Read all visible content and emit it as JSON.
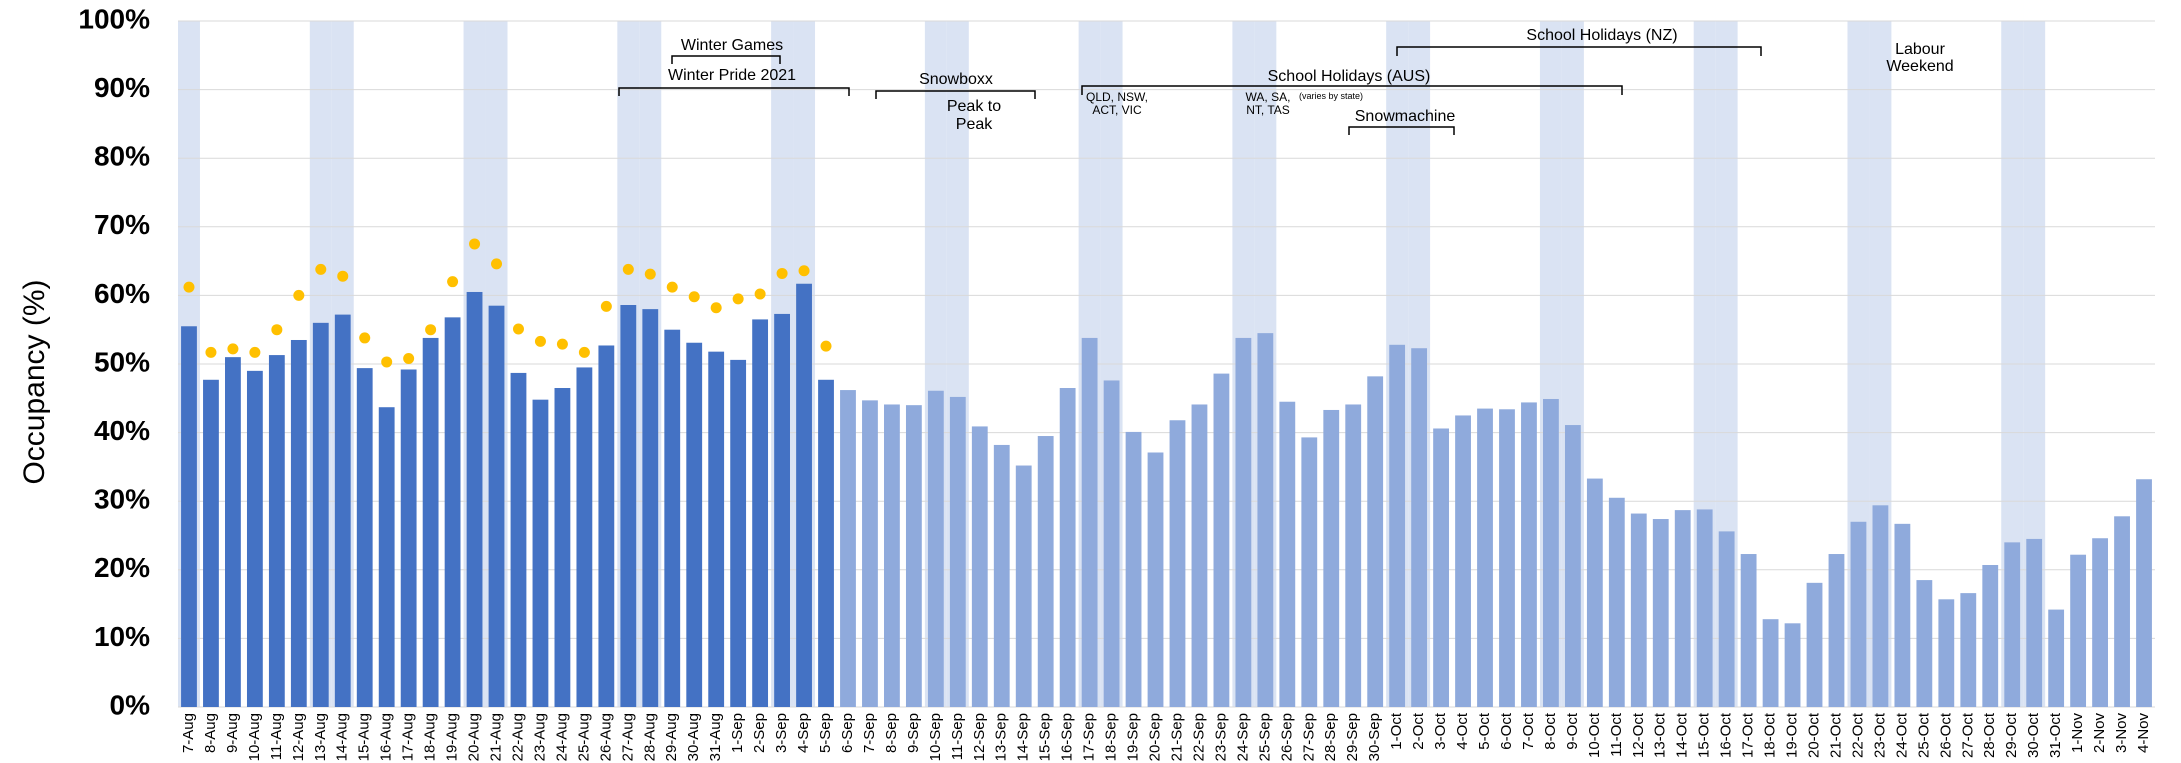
{
  "chart_data": {
    "type": "bar",
    "y_label": "Occupancy (%)",
    "ylim": [
      0,
      100
    ],
    "yticks": [
      {
        "value": 0,
        "label": "0%"
      },
      {
        "value": 10,
        "label": "10%"
      },
      {
        "value": 20,
        "label": "20%"
      },
      {
        "value": 30,
        "label": "30%"
      },
      {
        "value": 40,
        "label": "40%"
      },
      {
        "value": 50,
        "label": "50%"
      },
      {
        "value": 60,
        "label": "60%"
      },
      {
        "value": 70,
        "label": "70%"
      },
      {
        "value": 80,
        "label": "80%"
      },
      {
        "value": 90,
        "label": "90%"
      },
      {
        "value": 100,
        "label": "100%"
      }
    ],
    "grid": true,
    "shade_color": "#dae3f3",
    "shaded_categories": [
      0,
      6,
      7,
      13,
      14,
      20,
      21,
      27,
      28,
      34,
      35,
      41,
      42,
      48,
      49,
      55,
      56,
      62,
      63,
      69,
      70,
      76,
      77,
      83,
      84
    ],
    "categories": [
      "7-Aug",
      "8-Aug",
      "9-Aug",
      "10-Aug",
      "11-Aug",
      "12-Aug",
      "13-Aug",
      "14-Aug",
      "15-Aug",
      "16-Aug",
      "17-Aug",
      "18-Aug",
      "19-Aug",
      "20-Aug",
      "21-Aug",
      "22-Aug",
      "23-Aug",
      "24-Aug",
      "25-Aug",
      "26-Aug",
      "27-Aug",
      "28-Aug",
      "29-Aug",
      "30-Aug",
      "31-Aug",
      "1-Sep",
      "2-Sep",
      "3-Sep",
      "4-Sep",
      "5-Sep",
      "6-Sep",
      "7-Sep",
      "8-Sep",
      "9-Sep",
      "10-Sep",
      "11-Sep",
      "12-Sep",
      "13-Sep",
      "14-Sep",
      "15-Sep",
      "16-Sep",
      "17-Sep",
      "18-Sep",
      "19-Sep",
      "20-Sep",
      "21-Sep",
      "22-Sep",
      "23-Sep",
      "24-Sep",
      "25-Sep",
      "26-Sep",
      "27-Sep",
      "28-Sep",
      "29-Sep",
      "30-Sep",
      "1-Oct",
      "2-Oct",
      "3-Oct",
      "4-Oct",
      "5-Oct",
      "6-Oct",
      "7-Oct",
      "8-Oct",
      "9-Oct",
      "10-Oct",
      "11-Oct",
      "12-Oct",
      "13-Oct",
      "14-Oct",
      "15-Oct",
      "16-Oct",
      "17-Oct",
      "18-Oct",
      "19-Oct",
      "20-Oct",
      "21-Oct",
      "22-Oct",
      "23-Oct",
      "24-Oct",
      "25-Oct",
      "26-Oct",
      "27-Oct",
      "28-Oct",
      "29-Oct",
      "30-Oct",
      "31-Oct",
      "1-Nov",
      "2-Nov",
      "3-Nov",
      "4-Nov"
    ],
    "series": [
      {
        "type": "bar",
        "color": "#4472c4",
        "values": [
          55.5,
          47.7,
          51,
          49,
          51.3,
          53.5,
          56,
          57.2,
          49.4,
          43.7,
          49.2,
          53.8,
          56.8,
          60.5,
          58.5,
          48.7,
          44.8,
          46.5,
          49.5,
          52.7,
          58.6,
          58,
          55,
          53.1,
          51.8,
          50.6,
          56.5,
          57.3,
          61.7,
          47.7,
          null,
          null,
          null,
          null,
          null,
          null,
          null,
          null,
          null,
          null,
          null,
          null,
          null,
          null,
          null,
          null,
          null,
          null,
          null,
          null,
          null,
          null,
          null,
          null,
          null,
          null,
          null,
          null,
          null,
          null,
          null,
          null,
          null,
          null,
          null,
          null,
          null,
          null,
          null,
          null,
          null,
          null,
          null,
          null,
          null,
          null,
          null,
          null,
          null,
          null,
          null,
          null,
          null,
          null,
          null,
          null,
          null,
          null,
          null,
          null
        ]
      },
      {
        "type": "bar",
        "color": "#8faadc",
        "values": [
          null,
          null,
          null,
          null,
          null,
          null,
          null,
          null,
          null,
          null,
          null,
          null,
          null,
          null,
          null,
          null,
          null,
          null,
          null,
          null,
          null,
          null,
          null,
          null,
          null,
          null,
          null,
          null,
          null,
          null,
          46.2,
          44.7,
          44.1,
          44,
          46.1,
          45.2,
          40.9,
          38.2,
          35.2,
          39.5,
          46.5,
          53.8,
          47.6,
          40.1,
          37.1,
          41.8,
          44.1,
          48.6,
          53.8,
          54.5,
          44.5,
          39.3,
          43.3,
          44.1,
          48.2,
          52.8,
          52.3,
          40.6,
          42.5,
          43.5,
          43.4,
          44.4,
          44.9,
          41.1,
          33.3,
          30.5,
          28.2,
          27.4,
          28.7,
          28.8,
          25.6,
          22.3,
          12.8,
          12.2,
          18.1,
          22.3,
          27,
          29.4,
          26.7,
          18.5,
          15.7,
          16.6,
          20.7,
          24,
          24.5,
          14.2,
          22.2,
          24.6,
          27.8,
          33.2
        ]
      },
      {
        "type": "scatter",
        "color": "#ffc000",
        "values": [
          61.2,
          51.7,
          52.2,
          51.7,
          55,
          60,
          63.8,
          62.8,
          53.8,
          50.3,
          50.8,
          55,
          62,
          67.5,
          64.6,
          55.1,
          53.3,
          52.9,
          51.7,
          58.4,
          63.8,
          63.1,
          61.2,
          59.8,
          58.2,
          59.5,
          60.2,
          63.2,
          63.6,
          52.6,
          null,
          null,
          null,
          null,
          null,
          null,
          null,
          null,
          null,
          null,
          null,
          null,
          null,
          null,
          null,
          null,
          null,
          null,
          null,
          null,
          null,
          null,
          null,
          null,
          null,
          null,
          null,
          null,
          null,
          null,
          null,
          null,
          null,
          null,
          null,
          null,
          null,
          null,
          null,
          null,
          null,
          null,
          null,
          null,
          null,
          null,
          null,
          null,
          null,
          null,
          null,
          null,
          null,
          null,
          null,
          null,
          null,
          null,
          null,
          null
        ]
      }
    ],
    "annotations": [
      "Winter Games",
      "Winter Pride 2021",
      "Snowboxx",
      "Peak to",
      "Peak",
      "School Holidays (AUS)",
      "QLD, NSW,",
      "ACT, VIC",
      "WA, SA,",
      "NT, TAS",
      "(varies by state)",
      "Snowmachine",
      "School Holidays (NZ)",
      "Labour",
      "Weekend"
    ]
  }
}
